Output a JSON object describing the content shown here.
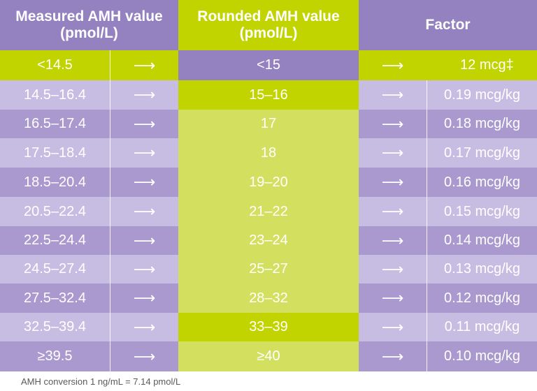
{
  "colors": {
    "purple_dark": "#9482c0",
    "purple_mid": "#a999cf",
    "purple_light": "#c7bde2",
    "green_bright": "#c2d400",
    "green_light": "#d3e05f"
  },
  "header": {
    "col1": "Measured AMH value (pmol/L)",
    "col2": "Rounded AMH value (pmol/L)",
    "col3": "Factor"
  },
  "arrow": "⟶",
  "rows": [
    {
      "measured": "<14.5",
      "rounded": "<15",
      "factor": "12 mcg‡"
    },
    {
      "measured": "14.5–16.4",
      "rounded": "15–16",
      "factor": "0.19 mcg/kg"
    },
    {
      "measured": "16.5–17.4",
      "rounded": "17",
      "factor": "0.18 mcg/kg"
    },
    {
      "measured": "17.5–18.4",
      "rounded": "18",
      "factor": "0.17 mcg/kg"
    },
    {
      "measured": "18.5–20.4",
      "rounded": "19–20",
      "factor": "0.16 mcg/kg"
    },
    {
      "measured": "20.5–22.4",
      "rounded": "21–22",
      "factor": "0.15 mcg/kg"
    },
    {
      "measured": "22.5–24.4",
      "rounded": "23–24",
      "factor": "0.14 mcg/kg"
    },
    {
      "measured": "24.5–27.4",
      "rounded": "25–27",
      "factor": "0.13 mcg/kg"
    },
    {
      "measured": "27.5–32.4",
      "rounded": "28–32",
      "factor": "0.12 mcg/kg"
    },
    {
      "measured": "32.5–39.4",
      "rounded": "33–39",
      "factor": "0.11 mcg/kg"
    },
    {
      "measured": "≥39.5",
      "rounded": "≥40",
      "factor": "0.10 mcg/kg"
    }
  ],
  "footer": "AMH conversion 1 ng/mL = 7.14 pmol/L"
}
